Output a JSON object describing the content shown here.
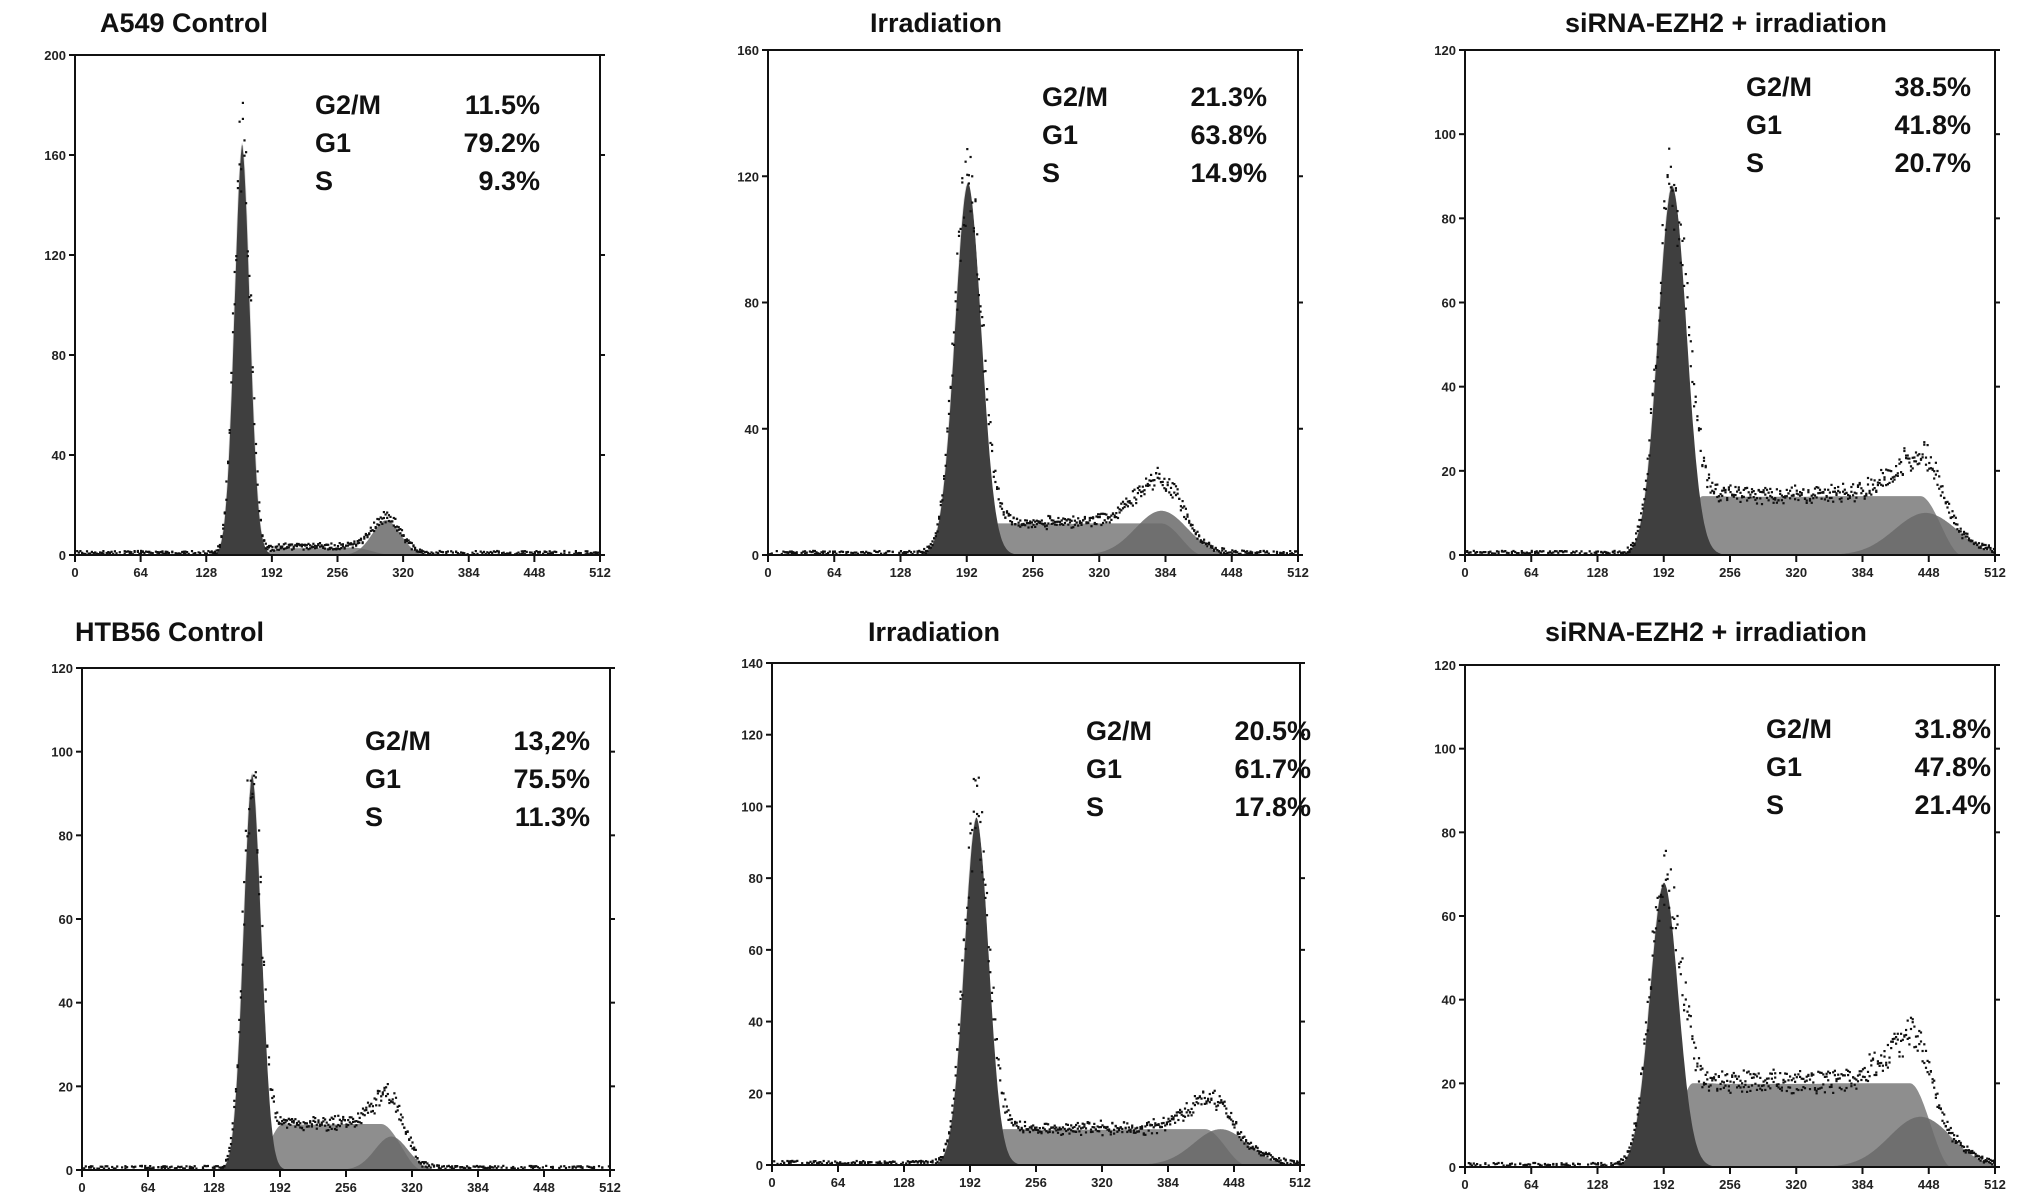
{
  "figure": {
    "panels": [
      {
        "title": "A549  Control",
        "stats": [
          {
            "label": "G2/M",
            "value": "11.5%"
          },
          {
            "label": "G1",
            "value": "79.2%"
          },
          {
            "label": "S",
            "value": "9.3%"
          }
        ]
      },
      {
        "title": "Irradiation",
        "stats": [
          {
            "label": "G2/M",
            "value": "21.3%"
          },
          {
            "label": "G1",
            "value": "63.8%"
          },
          {
            "label": "S",
            "value": "14.9%"
          }
        ]
      },
      {
        "title": "siRNA-EZH2 + irradiation",
        "stats": [
          {
            "label": "G2/M",
            "value": "38.5%"
          },
          {
            "label": "G1",
            "value": "41.8%"
          },
          {
            "label": "S",
            "value": "20.7%"
          }
        ]
      },
      {
        "title": "HTB56  Control",
        "stats": [
          {
            "label": "G2/M",
            "value": "13,2%"
          },
          {
            "label": "G1",
            "value": "75.5%"
          },
          {
            "label": "S",
            "value": "11.3%"
          }
        ]
      },
      {
        "title": "Irradiation",
        "stats": [
          {
            "label": "G2/M",
            "value": "20.5%"
          },
          {
            "label": "G1",
            "value": "61.7%"
          },
          {
            "label": "S",
            "value": "17.8%"
          }
        ]
      },
      {
        "title": "siRNA-EZH2 + irradiation",
        "stats": [
          {
            "label": "G2/M",
            "value": "31.8%"
          },
          {
            "label": "G1",
            "value": "47.8%"
          },
          {
            "label": "S",
            "value": "21.4%"
          }
        ]
      }
    ]
  },
  "colors": {
    "g1_fill": "#3f3f3f",
    "s_fill": "#7a7a7a",
    "g2m_fill": "#6a6a6a",
    "dots": "#111111",
    "axis": "#111111"
  },
  "chart_data": [
    {
      "type": "area",
      "title": "A549  Control",
      "xlabel": "",
      "ylabel": "",
      "xlim": [
        0,
        512
      ],
      "ylim": [
        0,
        200
      ],
      "x_ticks": [
        "0",
        "64",
        "128",
        "192",
        "256",
        "320",
        "384",
        "448",
        "512"
      ],
      "y_ticks": [
        "0",
        "40",
        "80",
        "120",
        "160",
        "200"
      ],
      "g1": {
        "peak_x": 163,
        "peak_y": 165,
        "sigma": 8
      },
      "s_phase": {
        "start_x": 175,
        "end_x": 310,
        "height": 3
      },
      "g2m": {
        "peak_x": 304,
        "peak_y": 14,
        "sigma": 14
      },
      "phases_percent": {
        "G2/M": 11.5,
        "G1": 79.2,
        "S": 9.3
      }
    },
    {
      "type": "area",
      "title": "Irradiation",
      "xlabel": "",
      "ylabel": "",
      "xlim": [
        0,
        512
      ],
      "ylim": [
        0,
        160
      ],
      "x_ticks": [
        "0",
        "64",
        "128",
        "192",
        "256",
        "320",
        "384",
        "448",
        "512"
      ],
      "y_ticks": [
        "0",
        "40",
        "80",
        "120",
        "160"
      ],
      "g1": {
        "peak_x": 193,
        "peak_y": 118,
        "sigma": 13
      },
      "s_phase": {
        "start_x": 190,
        "end_x": 420,
        "height": 10
      },
      "g2m": {
        "peak_x": 380,
        "peak_y": 14,
        "sigma": 25
      },
      "phases_percent": {
        "G2/M": 21.3,
        "G1": 63.8,
        "S": 14.9
      }
    },
    {
      "type": "area",
      "title": "siRNA-EZH2 + irradiation",
      "xlabel": "",
      "ylabel": "",
      "xlim": [
        0,
        512
      ],
      "ylim": [
        0,
        120
      ],
      "x_ticks": [
        "0",
        "64",
        "128",
        "192",
        "256",
        "320",
        "384",
        "448",
        "512"
      ],
      "y_ticks": [
        "0",
        "20",
        "40",
        "60",
        "80",
        "100",
        "120"
      ],
      "g1": {
        "peak_x": 200,
        "peak_y": 88,
        "sigma": 14
      },
      "s_phase": {
        "start_x": 200,
        "end_x": 480,
        "height": 14
      },
      "g2m": {
        "peak_x": 445,
        "peak_y": 10,
        "sigma": 30
      },
      "phases_percent": {
        "G2/M": 38.5,
        "G1": 41.8,
        "S": 20.7
      }
    },
    {
      "type": "area",
      "title": "HTB56  Control",
      "xlabel": "",
      "ylabel": "",
      "xlim": [
        0,
        512
      ],
      "ylim": [
        0,
        120
      ],
      "x_ticks": [
        "0",
        "64",
        "128",
        "192",
        "256",
        "320",
        "384",
        "448",
        "512"
      ],
      "y_ticks": [
        "0",
        "20",
        "40",
        "60",
        "80",
        "100",
        "120"
      ],
      "g1": {
        "peak_x": 165,
        "peak_y": 95,
        "sigma": 9
      },
      "s_phase": {
        "start_x": 165,
        "end_x": 330,
        "height": 11
      },
      "g2m": {
        "peak_x": 300,
        "peak_y": 8,
        "sigma": 16
      },
      "phases_percent": {
        "G2/M": 13.2,
        "G1": 75.5,
        "S": 11.3
      }
    },
    {
      "type": "area",
      "title": "Irradiation",
      "xlabel": "",
      "ylabel": "",
      "xlim": [
        0,
        512
      ],
      "ylim": [
        0,
        140
      ],
      "x_ticks": [
        "0",
        "64",
        "128",
        "192",
        "256",
        "320",
        "384",
        "448",
        "512"
      ],
      "y_ticks": [
        "0",
        "20",
        "40",
        "60",
        "80",
        "100",
        "120",
        "140"
      ],
      "g1": {
        "peak_x": 198,
        "peak_y": 97,
        "sigma": 12
      },
      "s_phase": {
        "start_x": 195,
        "end_x": 460,
        "height": 10
      },
      "g2m": {
        "peak_x": 435,
        "peak_y": 10,
        "sigma": 26
      },
      "phases_percent": {
        "G2/M": 20.5,
        "G1": 61.7,
        "S": 17.8
      }
    },
    {
      "type": "area",
      "title": "siRNA-EZH2 + irradiation",
      "xlabel": "",
      "ylabel": "",
      "xlim": [
        0,
        512
      ],
      "ylim": [
        0,
        120
      ],
      "x_ticks": [
        "0",
        "64",
        "128",
        "192",
        "256",
        "320",
        "384",
        "448",
        "512"
      ],
      "y_ticks": [
        "0",
        "20",
        "40",
        "60",
        "80",
        "100",
        "120"
      ],
      "g1": {
        "peak_x": 192,
        "peak_y": 68,
        "sigma": 14
      },
      "s_phase": {
        "start_x": 190,
        "end_x": 470,
        "height": 20
      },
      "g2m": {
        "peak_x": 440,
        "peak_y": 12,
        "sigma": 30
      },
      "phases_percent": {
        "G2/M": 31.8,
        "G1": 47.8,
        "S": 21.4
      }
    }
  ]
}
